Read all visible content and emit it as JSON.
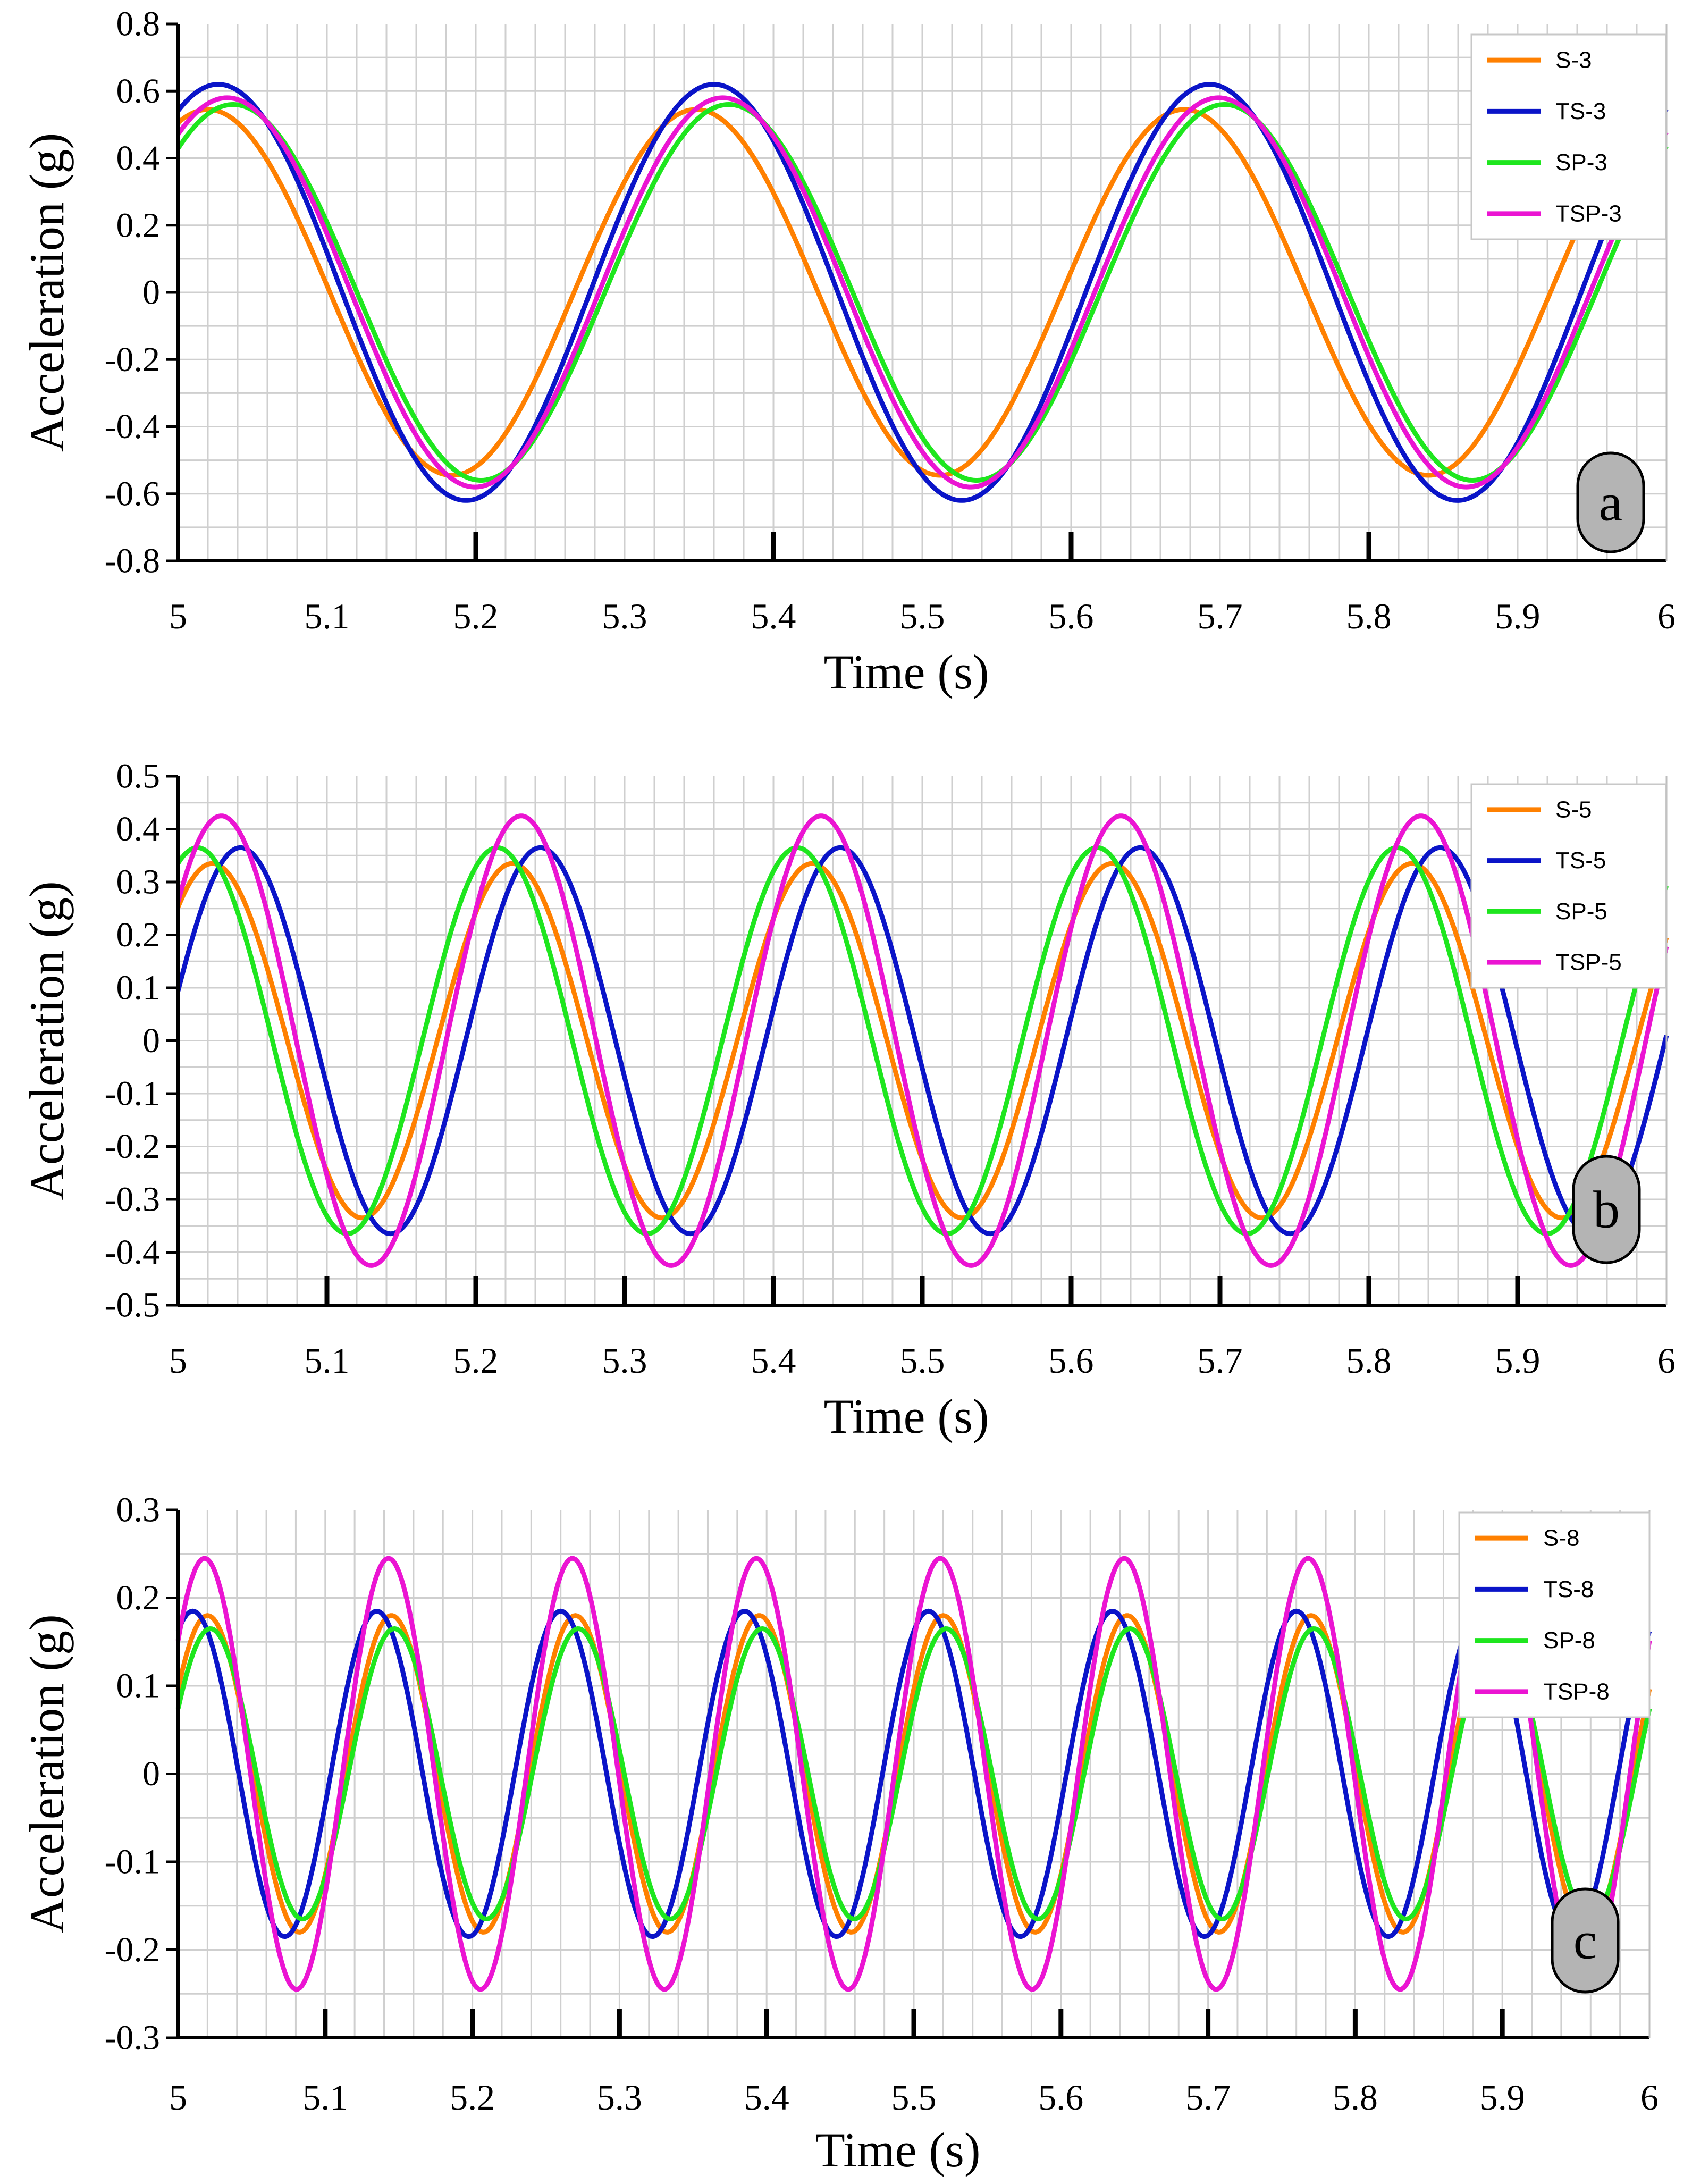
{
  "chart_data": [
    {
      "id": "a",
      "type": "line",
      "panel_label": "a",
      "xlabel": "Time (s)",
      "ylabel": "Acceleration (g)",
      "xlim": [
        5,
        6
      ],
      "ylim": [
        -0.8,
        0.8
      ],
      "x_ticks": [
        5,
        5.1,
        5.2,
        5.3,
        5.4,
        5.5,
        5.6,
        5.7,
        5.8,
        5.9,
        6
      ],
      "x_tick_labels": [
        "5",
        "5.1",
        "5.2",
        "5.3",
        "5.4",
        "5.5",
        "5.6",
        "5.7",
        "5.8",
        "5.9",
        "6"
      ],
      "y_ticks": [
        -0.8,
        -0.6,
        -0.4,
        -0.2,
        0,
        0.2,
        0.4,
        0.6,
        0.8
      ],
      "y_tick_labels": [
        "-0.8",
        "-0.6",
        "-0.4",
        "-0.2",
        "0",
        "0.2",
        "0.4",
        "0.6",
        "0.8"
      ],
      "grid": true,
      "legend_position": "top-right",
      "series": [
        {
          "name": "S-3",
          "color": "#FF8000",
          "amplitude": 0.545,
          "period": 0.328,
          "peak_time": 5.02
        },
        {
          "name": "TS-3",
          "color": "#0A14C8",
          "amplitude": 0.62,
          "period": 0.333,
          "peak_time": 5.027
        },
        {
          "name": "SP-3",
          "color": "#1EE61E",
          "amplitude": 0.56,
          "period": 0.333,
          "peak_time": 5.037
        },
        {
          "name": "TSP-3",
          "color": "#EB14D2",
          "amplitude": 0.58,
          "period": 0.333,
          "peak_time": 5.033
        }
      ]
    },
    {
      "id": "b",
      "type": "line",
      "panel_label": "b",
      "xlabel": "Time (s)",
      "ylabel": "Acceleration (g)",
      "xlim": [
        5,
        6
      ],
      "ylim": [
        -0.5,
        0.5
      ],
      "x_ticks": [
        5,
        5.1,
        5.2,
        5.3,
        5.4,
        5.5,
        5.6,
        5.7,
        5.8,
        5.9,
        6
      ],
      "x_tick_labels": [
        "5",
        "5.1",
        "5.2",
        "5.3",
        "5.4",
        "5.5",
        "5.6",
        "5.7",
        "5.8",
        "5.9",
        "6"
      ],
      "y_ticks": [
        -0.5,
        -0.4,
        -0.3,
        -0.2,
        -0.1,
        0,
        0.1,
        0.2,
        0.3,
        0.4,
        0.5
      ],
      "y_tick_labels": [
        "-0.5",
        "-0.4",
        "-0.3",
        "-0.2",
        "-0.1",
        "0",
        "0.1",
        "0.2",
        "0.3",
        "0.4",
        "0.5"
      ],
      "grid": true,
      "legend_position": "top-right",
      "series": [
        {
          "name": "S-5",
          "color": "#FF8000",
          "amplitude": 0.335,
          "period": 0.2015,
          "peak_time": 5.023
        },
        {
          "name": "TS-5",
          "color": "#0A14C8",
          "amplitude": 0.365,
          "period": 0.2015,
          "peak_time": 5.042
        },
        {
          "name": "SP-5",
          "color": "#1EE61E",
          "amplitude": 0.365,
          "period": 0.2015,
          "peak_time": 5.013
        },
        {
          "name": "TSP-5",
          "color": "#EB14D2",
          "amplitude": 0.425,
          "period": 0.2015,
          "peak_time": 5.029
        }
      ]
    },
    {
      "id": "c",
      "type": "line",
      "panel_label": "c",
      "xlabel": "Time (s)",
      "ylabel": "Acceleration (g)",
      "xlim": [
        5,
        6
      ],
      "ylim": [
        -0.3,
        0.3
      ],
      "x_ticks": [
        5,
        5.1,
        5.2,
        5.3,
        5.4,
        5.5,
        5.6,
        5.7,
        5.8,
        5.9,
        6
      ],
      "x_tick_labels": [
        "5",
        "5.1",
        "5.2",
        "5.3",
        "5.4",
        "5.5",
        "5.6",
        "5.7",
        "5.8",
        "5.9",
        "6"
      ],
      "y_ticks": [
        -0.3,
        -0.2,
        -0.1,
        0,
        0.1,
        0.2,
        0.3
      ],
      "y_tick_labels": [
        "-0.3",
        "-0.2",
        "-0.1",
        "0",
        "0.1",
        "0.2",
        "0.3"
      ],
      "grid": true,
      "legend_position": "top-right",
      "series": [
        {
          "name": "S-8",
          "color": "#FF8000",
          "amplitude": 0.18,
          "period": 0.125,
          "peak_time": 5.02
        },
        {
          "name": "TS-8",
          "color": "#0A14C8",
          "amplitude": 0.185,
          "period": 0.125,
          "peak_time": 5.01
        },
        {
          "name": "SP-8",
          "color": "#1EE61E",
          "amplitude": 0.165,
          "period": 0.125,
          "peak_time": 5.022
        },
        {
          "name": "TSP-8",
          "color": "#EB14D2",
          "amplitude": 0.245,
          "period": 0.125,
          "peak_time": 5.018
        }
      ]
    }
  ]
}
